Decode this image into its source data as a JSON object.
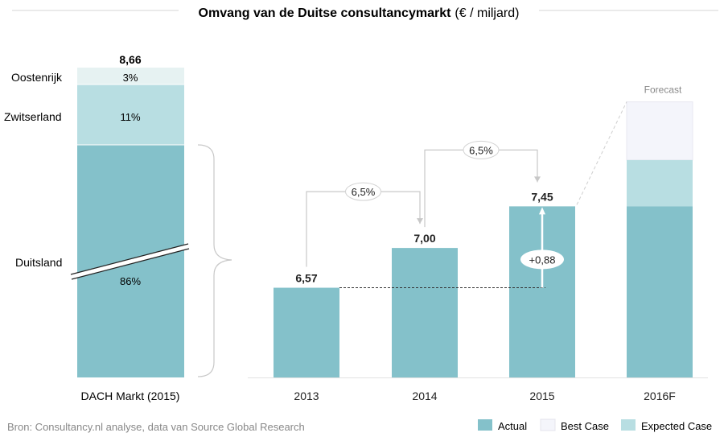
{
  "colors": {
    "actual": "#84c1ca",
    "best_case": "#f4f5fb",
    "expected_case": "#b8dee2",
    "austria": "#e6f2f2",
    "switzerland": "#b8dee2",
    "text": "#222222",
    "muted": "#888888"
  },
  "title": {
    "main": "Omvang van de Duitse consultancymarkt",
    "unit": "(€ / miljard)"
  },
  "source": "Bron: Consultancy.nl analyse, data van Source Global Research",
  "legend": [
    {
      "label": "Actual",
      "color_key": "actual"
    },
    {
      "label": "Best Case",
      "color_key": "best_case"
    },
    {
      "label": "Expected Case",
      "color_key": "expected_case"
    }
  ],
  "chart_data": [
    {
      "type": "bar",
      "stacked": true,
      "categories": [
        "DACH Markt (2015)"
      ],
      "total": 8.66,
      "total_label": "8,66",
      "series": [
        {
          "name": "Duitsland",
          "value_pct": 86,
          "label": "86%"
        },
        {
          "name": "Zwitserland",
          "value_pct": 11,
          "label": "11%"
        },
        {
          "name": "Oostenrijk",
          "value_pct": 3,
          "label": "3%"
        }
      ]
    },
    {
      "type": "bar",
      "categories": [
        "2013",
        "2014",
        "2015",
        "2016F"
      ],
      "series": [
        {
          "name": "Actual",
          "values": [
            6.57,
            7.0,
            7.45,
            7.45
          ]
        }
      ],
      "value_labels": [
        "6,57",
        "7,00",
        "7,45",
        ""
      ],
      "forecast_2016": {
        "actual": 7.45,
        "expected_case": 7.95,
        "best_case": 8.58
      },
      "forecast_label": "Forecast",
      "growth_labels": [
        {
          "from": "2013",
          "to": "2014",
          "label": "6,5%"
        },
        {
          "from": "2014",
          "to": "2015",
          "label": "6,5%"
        }
      ],
      "difference": {
        "from": "2013",
        "to": "2015",
        "value": 0.88,
        "label": "+0,88"
      },
      "ylim": [
        5.6,
        8.95
      ]
    }
  ]
}
